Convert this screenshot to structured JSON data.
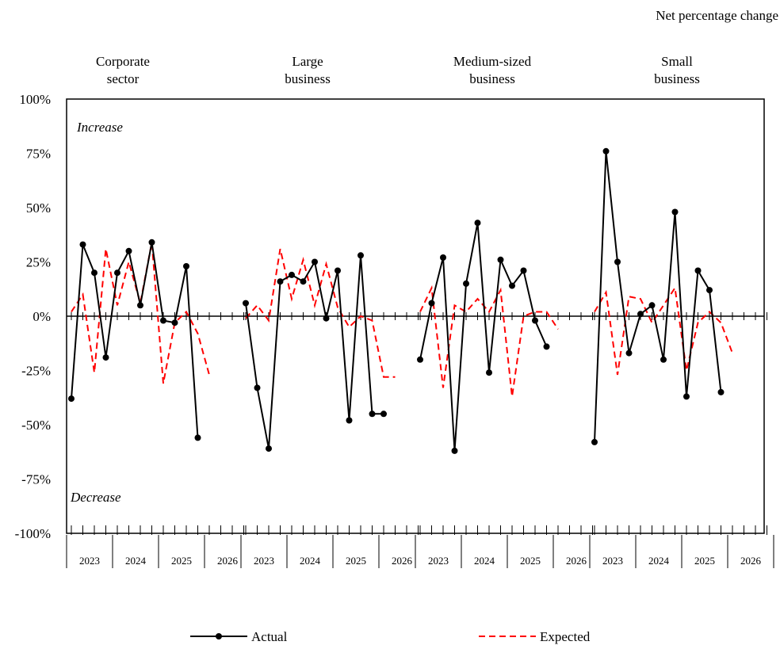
{
  "chart_data": {
    "type": "line",
    "unit_label": "Net percentage change",
    "ylim": [
      -100,
      100
    ],
    "yticks": [
      100,
      75,
      50,
      25,
      0,
      -25,
      -50,
      -75,
      -100
    ],
    "ytick_suffix": "%",
    "annotations": {
      "top": "Increase",
      "bottom": "Decrease"
    },
    "year_labels": [
      "2023",
      "2024",
      "2025",
      "2026"
    ],
    "quarters_per_year": 4,
    "legend": {
      "placement": "bottom",
      "actual": "Actual",
      "expected": "Expected"
    },
    "colors": {
      "actual": "#000000",
      "expected": "#ff0000",
      "axis": "#000000"
    },
    "panels": [
      {
        "title_lines": [
          "Corporate",
          "sector"
        ],
        "actual": [
          -38,
          33,
          20,
          -19,
          20,
          30,
          5,
          34,
          -2,
          -3,
          23,
          -56
        ],
        "expected": [
          2,
          10,
          -26,
          31,
          5,
          25,
          6,
          34,
          -31,
          -3,
          2,
          -8,
          -27
        ]
      },
      {
        "title_lines": [
          "Large",
          "business"
        ],
        "actual": [
          6,
          -33,
          -61,
          16,
          19,
          16,
          25,
          -1,
          21,
          -48,
          28,
          -45,
          -45
        ],
        "expected": [
          -1,
          5,
          -2,
          31,
          8,
          26,
          5,
          24,
          4,
          -5,
          0,
          -2,
          -28,
          -28
        ]
      },
      {
        "title_lines": [
          "Medium-sized",
          "business"
        ],
        "actual": [
          -20,
          6,
          27,
          -62,
          15,
          43,
          -26,
          26,
          14,
          21,
          -2,
          -14
        ],
        "expected": [
          2,
          13,
          -33,
          5,
          2,
          8,
          2,
          12,
          -37,
          0,
          2,
          2,
          -6
        ]
      },
      {
        "title_lines": [
          "Small",
          "business"
        ],
        "actual": [
          -58,
          76,
          25,
          -17,
          1,
          5,
          -20,
          48,
          -37,
          21,
          12,
          -35
        ],
        "expected": [
          2,
          11,
          -27,
          9,
          8,
          -3,
          5,
          13,
          -25,
          -3,
          2,
          -3,
          -17
        ]
      }
    ]
  }
}
